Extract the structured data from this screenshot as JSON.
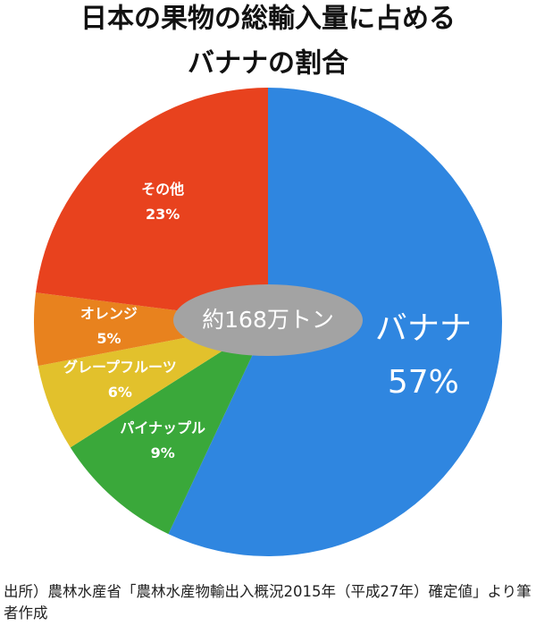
{
  "chart_data": {
    "type": "pie",
    "title": [
      "日本の果物の総輸入量に占める",
      "バナナの割合"
    ],
    "categories": [
      "バナナ",
      "パイナップル",
      "グレープフルーツ",
      "オレンジ",
      "その他"
    ],
    "values": [
      57,
      9,
      6,
      5,
      23
    ],
    "value_labels": [
      "57%",
      "9%",
      "6%",
      "5%",
      "23%"
    ],
    "colors": [
      "#2f86e0",
      "#3aa83a",
      "#e2c12c",
      "#e8821e",
      "#e8421e"
    ],
    "center_label": "約168万トン",
    "source": "出所）農林水産省「農林水産物輸出入概況2015年（平成27年）確定値」より筆者作成"
  }
}
